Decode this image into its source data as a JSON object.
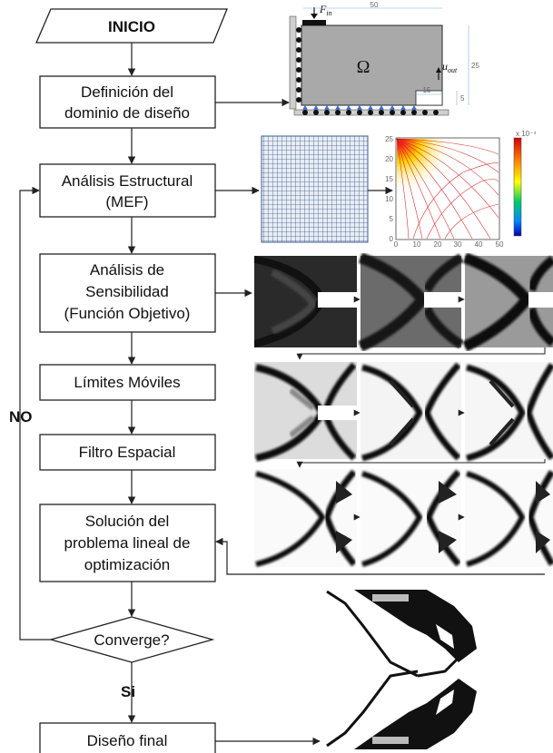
{
  "flowchart": {
    "start": "INICIO",
    "steps": [
      {
        "id": "domain",
        "lines": [
          "Definición del",
          "dominio de diseño"
        ]
      },
      {
        "id": "fea",
        "lines": [
          "Análisis Estructural",
          "(MEF)"
        ]
      },
      {
        "id": "sensitivity",
        "lines": [
          "Análisis de",
          "Sensibilidad",
          "(Función Objetivo)"
        ]
      },
      {
        "id": "move-limits",
        "lines": [
          "Límites Móviles"
        ]
      },
      {
        "id": "filter",
        "lines": [
          "Filtro Espacial"
        ]
      },
      {
        "id": "lp",
        "lines": [
          "Solución del",
          "problema lineal de",
          "optimización"
        ]
      }
    ],
    "decision": "Converge?",
    "no_label": "NO",
    "yes_label": "Si",
    "end": "Diseño final"
  },
  "domain_figure": {
    "omega_symbol": "Ω",
    "force_label_main": "F",
    "force_label_sub": "in",
    "output_label_main": "u",
    "output_label_sub": "out",
    "dim_width": "50",
    "dim_height": "25",
    "dim_gap_width": "15",
    "dim_gap_height": "5"
  },
  "contour_figure": {
    "scale_title": "x 10⁻⁴",
    "x_ticks": [
      "0",
      "10",
      "20",
      "30",
      "40",
      "50"
    ],
    "y_ticks": [
      "0",
      "5",
      "10",
      "15",
      "20",
      "25"
    ]
  },
  "colors": {
    "line": "#222222",
    "mesh": "#3b5b8a",
    "support": "#3a6fd6"
  }
}
